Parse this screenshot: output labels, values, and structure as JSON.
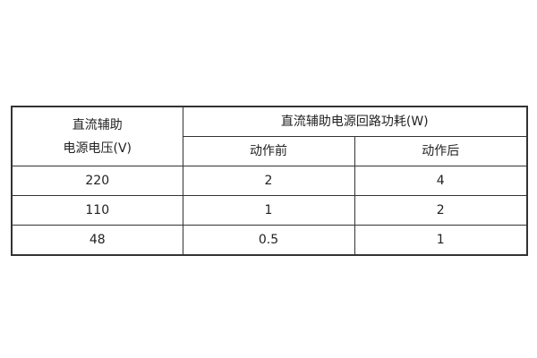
{
  "table": {
    "header": {
      "col1_line1": "直流辅助",
      "col1_line2": "电源电压(V)",
      "group": "直流辅助电源回路功耗(W)",
      "sub1": "动作前",
      "sub2": "动作后"
    },
    "rows": [
      [
        "220",
        "2",
        "4"
      ],
      [
        "110",
        "1",
        "2"
      ],
      [
        "48",
        "0.5",
        "1"
      ]
    ]
  }
}
